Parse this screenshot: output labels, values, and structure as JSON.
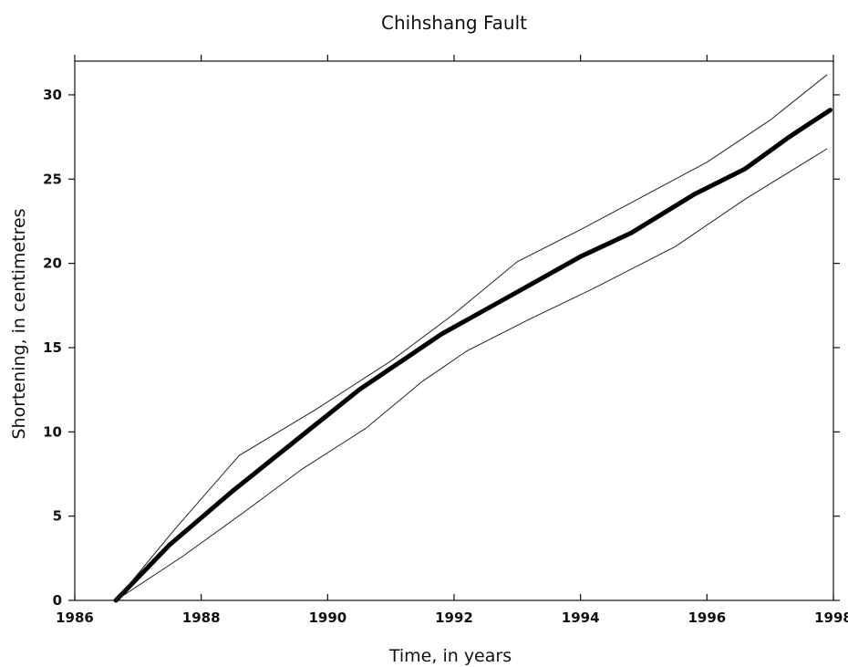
{
  "chart_data": {
    "type": "line",
    "title": "Chihshang Fault",
    "xlabel": "Time, in years",
    "ylabel": "Shortening, in centimetres",
    "xlim": [
      1986,
      1998
    ],
    "ylim": [
      0,
      32
    ],
    "x_ticks": [
      "1986",
      "1988",
      "1990",
      "1992",
      "1994",
      "1996",
      "1998"
    ],
    "x_tick_values": [
      1986,
      1988,
      1990,
      1992,
      1994,
      1996,
      1998
    ],
    "y_ticks": [
      "0",
      "5",
      "10",
      "15",
      "20",
      "25",
      "30"
    ],
    "y_tick_values": [
      0,
      5,
      10,
      15,
      20,
      25,
      30
    ],
    "grid": false,
    "legend": "none",
    "series": [
      {
        "role": "central",
        "color": "#000000",
        "x": [
          1986.65,
          1987.5,
          1988.5,
          1989.5,
          1990.5,
          1991.8,
          1993.0,
          1994.0,
          1994.8,
          1995.8,
          1996.6,
          1997.3,
          1997.95
        ],
        "y": [
          0,
          3.3,
          6.5,
          9.5,
          12.5,
          15.8,
          18.3,
          20.4,
          21.8,
          24.1,
          25.6,
          27.5,
          29.1
        ]
      },
      {
        "role": "upper-bound",
        "color": "#222222",
        "x": [
          1986.65,
          1987.6,
          1988.6,
          1989.8,
          1991.0,
          1992.0,
          1993.0,
          1994.0,
          1995.0,
          1996.0,
          1997.0,
          1997.9
        ],
        "y": [
          0,
          4.3,
          8.6,
          11.3,
          14.2,
          17.0,
          20.1,
          22.0,
          24.0,
          26.0,
          28.5,
          31.2
        ]
      },
      {
        "role": "lower-bound",
        "color": "#222222",
        "x": [
          1986.65,
          1987.7,
          1988.7,
          1989.6,
          1990.6,
          1991.5,
          1992.2,
          1993.2,
          1994.2,
          1995.5,
          1996.6,
          1997.9
        ],
        "y": [
          0,
          2.6,
          5.3,
          7.8,
          10.2,
          13.0,
          14.8,
          16.7,
          18.5,
          21.0,
          23.8,
          26.8
        ]
      }
    ]
  }
}
